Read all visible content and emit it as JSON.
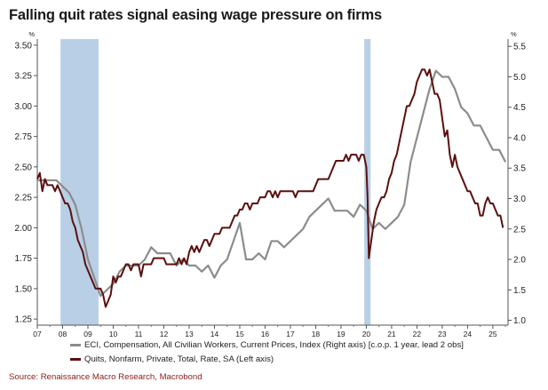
{
  "chart_data": {
    "type": "line",
    "title": "Falling quit rates signal easing wage pressure on firms",
    "left_axis": {
      "unit": "%",
      "ticks": [
        "1.25",
        "1.50",
        "1.75",
        "2.00",
        "2.25",
        "2.50",
        "2.75",
        "3.00",
        "3.25",
        "3.50"
      ],
      "ylim": [
        1.2,
        3.55
      ]
    },
    "right_axis": {
      "unit": "%",
      "ticks": [
        "1.0",
        "1.5",
        "2.0",
        "2.5",
        "3.0",
        "3.5",
        "4.0",
        "4.5",
        "5.0",
        "5.5"
      ],
      "ylim": [
        0.92,
        5.62
      ]
    },
    "x_axis": {
      "ticks": [
        "07",
        "08",
        "09",
        "10",
        "11",
        "12",
        "13",
        "14",
        "15",
        "16",
        "17",
        "18",
        "19",
        "20",
        "21",
        "22",
        "23",
        "24",
        "25"
      ],
      "xlim": [
        2007.0,
        2025.6
      ]
    },
    "grid": false,
    "legend_position": "bottom",
    "recession_shading": [
      [
        2007.92,
        2009.42
      ],
      [
        2019.92,
        2020.17
      ]
    ],
    "shade_color": "#b8cfe6",
    "series": [
      {
        "name": "ECI, Compensation, All Civilian Workers, Current Prices, Index (Right axis) [c.o.p. 1 year, lead 2 obs]",
        "axis": "right",
        "color": "#8c8c8c",
        "points": [
          [
            2007.0,
            3.3
          ],
          [
            2007.25,
            3.3
          ],
          [
            2007.5,
            3.3
          ],
          [
            2007.75,
            3.3
          ],
          [
            2008.0,
            3.2
          ],
          [
            2008.25,
            3.1
          ],
          [
            2008.5,
            2.9
          ],
          [
            2008.75,
            2.5
          ],
          [
            2009.0,
            2.0
          ],
          [
            2009.25,
            1.7
          ],
          [
            2009.5,
            1.4
          ],
          [
            2009.75,
            1.5
          ],
          [
            2010.0,
            1.6
          ],
          [
            2010.25,
            1.8
          ],
          [
            2010.5,
            1.9
          ],
          [
            2010.75,
            1.9
          ],
          [
            2011.0,
            1.9
          ],
          [
            2011.25,
            2.0
          ],
          [
            2011.5,
            2.2
          ],
          [
            2011.75,
            2.1
          ],
          [
            2012.0,
            2.1
          ],
          [
            2012.25,
            2.1
          ],
          [
            2012.5,
            1.9
          ],
          [
            2012.75,
            2.0
          ],
          [
            2013.0,
            1.9
          ],
          [
            2013.25,
            1.9
          ],
          [
            2013.5,
            1.8
          ],
          [
            2013.75,
            1.9
          ],
          [
            2014.0,
            1.7
          ],
          [
            2014.25,
            1.9
          ],
          [
            2014.5,
            2.0
          ],
          [
            2014.75,
            2.3
          ],
          [
            2015.0,
            2.6
          ],
          [
            2015.25,
            2.0
          ],
          [
            2015.5,
            2.0
          ],
          [
            2015.75,
            2.1
          ],
          [
            2016.0,
            2.0
          ],
          [
            2016.25,
            2.3
          ],
          [
            2016.5,
            2.3
          ],
          [
            2016.75,
            2.2
          ],
          [
            2017.0,
            2.3
          ],
          [
            2017.25,
            2.4
          ],
          [
            2017.5,
            2.5
          ],
          [
            2017.75,
            2.7
          ],
          [
            2018.0,
            2.8
          ],
          [
            2018.25,
            2.9
          ],
          [
            2018.5,
            3.0
          ],
          [
            2018.75,
            2.8
          ],
          [
            2019.0,
            2.8
          ],
          [
            2019.25,
            2.8
          ],
          [
            2019.5,
            2.7
          ],
          [
            2019.75,
            2.9
          ],
          [
            2020.0,
            2.8
          ],
          [
            2020.25,
            2.5
          ],
          [
            2020.5,
            2.6
          ],
          [
            2020.75,
            2.5
          ],
          [
            2021.0,
            2.6
          ],
          [
            2021.25,
            2.7
          ],
          [
            2021.5,
            2.9
          ],
          [
            2021.75,
            3.6
          ],
          [
            2022.0,
            4.0
          ],
          [
            2022.25,
            4.4
          ],
          [
            2022.5,
            4.8
          ],
          [
            2022.75,
            5.1
          ],
          [
            2023.0,
            5.0
          ],
          [
            2023.25,
            5.0
          ],
          [
            2023.5,
            4.8
          ],
          [
            2023.75,
            4.5
          ],
          [
            2024.0,
            4.4
          ],
          [
            2024.25,
            4.2
          ],
          [
            2024.5,
            4.2
          ],
          [
            2024.75,
            4.0
          ],
          [
            2025.0,
            3.8
          ],
          [
            2025.25,
            3.8
          ],
          [
            2025.5,
            3.6
          ],
          [
            2025.75,
            3.6
          ]
        ]
      },
      {
        "name": "Quits, Nonfarm, Private, Total, Rate, SA (Left axis)",
        "axis": "left",
        "color": "#5c0f0f",
        "points": [
          [
            2007.0,
            2.4
          ],
          [
            2007.1,
            2.45
          ],
          [
            2007.2,
            2.3
          ],
          [
            2007.3,
            2.4
          ],
          [
            2007.4,
            2.35
          ],
          [
            2007.5,
            2.35
          ],
          [
            2007.6,
            2.35
          ],
          [
            2007.7,
            2.3
          ],
          [
            2007.8,
            2.35
          ],
          [
            2007.9,
            2.3
          ],
          [
            2008.0,
            2.25
          ],
          [
            2008.1,
            2.2
          ],
          [
            2008.2,
            2.2
          ],
          [
            2008.3,
            2.15
          ],
          [
            2008.4,
            2.05
          ],
          [
            2008.5,
            2.0
          ],
          [
            2008.6,
            1.9
          ],
          [
            2008.7,
            1.85
          ],
          [
            2008.8,
            1.8
          ],
          [
            2008.9,
            1.7
          ],
          [
            2009.0,
            1.65
          ],
          [
            2009.1,
            1.6
          ],
          [
            2009.2,
            1.55
          ],
          [
            2009.3,
            1.5
          ],
          [
            2009.4,
            1.5
          ],
          [
            2009.5,
            1.5
          ],
          [
            2009.6,
            1.45
          ],
          [
            2009.7,
            1.35
          ],
          [
            2009.8,
            1.4
          ],
          [
            2009.9,
            1.45
          ],
          [
            2010.0,
            1.6
          ],
          [
            2010.1,
            1.55
          ],
          [
            2010.2,
            1.6
          ],
          [
            2010.3,
            1.6
          ],
          [
            2010.4,
            1.65
          ],
          [
            2010.5,
            1.7
          ],
          [
            2010.6,
            1.7
          ],
          [
            2010.7,
            1.65
          ],
          [
            2010.8,
            1.7
          ],
          [
            2010.9,
            1.7
          ],
          [
            2011.0,
            1.7
          ],
          [
            2011.1,
            1.6
          ],
          [
            2011.2,
            1.7
          ],
          [
            2011.3,
            1.7
          ],
          [
            2011.4,
            1.7
          ],
          [
            2011.5,
            1.7
          ],
          [
            2011.6,
            1.75
          ],
          [
            2011.7,
            1.75
          ],
          [
            2011.8,
            1.75
          ],
          [
            2011.9,
            1.75
          ],
          [
            2012.0,
            1.75
          ],
          [
            2012.1,
            1.7
          ],
          [
            2012.2,
            1.7
          ],
          [
            2012.3,
            1.7
          ],
          [
            2012.4,
            1.7
          ],
          [
            2012.5,
            1.7
          ],
          [
            2012.6,
            1.75
          ],
          [
            2012.7,
            1.7
          ],
          [
            2012.8,
            1.75
          ],
          [
            2012.9,
            1.7
          ],
          [
            2013.0,
            1.8
          ],
          [
            2013.1,
            1.85
          ],
          [
            2013.2,
            1.8
          ],
          [
            2013.3,
            1.85
          ],
          [
            2013.4,
            1.8
          ],
          [
            2013.5,
            1.85
          ],
          [
            2013.6,
            1.9
          ],
          [
            2013.7,
            1.9
          ],
          [
            2013.8,
            1.85
          ],
          [
            2013.9,
            1.9
          ],
          [
            2014.0,
            1.95
          ],
          [
            2014.1,
            1.95
          ],
          [
            2014.2,
            1.95
          ],
          [
            2014.3,
            2.0
          ],
          [
            2014.4,
            2.0
          ],
          [
            2014.5,
            2.0
          ],
          [
            2014.6,
            2.0
          ],
          [
            2014.7,
            2.05
          ],
          [
            2014.8,
            2.1
          ],
          [
            2014.9,
            2.1
          ],
          [
            2015.0,
            2.15
          ],
          [
            2015.1,
            2.15
          ],
          [
            2015.2,
            2.2
          ],
          [
            2015.3,
            2.2
          ],
          [
            2015.4,
            2.15
          ],
          [
            2015.5,
            2.2
          ],
          [
            2015.6,
            2.2
          ],
          [
            2015.7,
            2.2
          ],
          [
            2015.8,
            2.25
          ],
          [
            2015.9,
            2.25
          ],
          [
            2016.0,
            2.25
          ],
          [
            2016.1,
            2.3
          ],
          [
            2016.2,
            2.3
          ],
          [
            2016.3,
            2.25
          ],
          [
            2016.4,
            2.3
          ],
          [
            2016.5,
            2.25
          ],
          [
            2016.6,
            2.3
          ],
          [
            2016.7,
            2.3
          ],
          [
            2016.8,
            2.3
          ],
          [
            2016.9,
            2.3
          ],
          [
            2017.0,
            2.3
          ],
          [
            2017.1,
            2.3
          ],
          [
            2017.2,
            2.25
          ],
          [
            2017.3,
            2.3
          ],
          [
            2017.4,
            2.3
          ],
          [
            2017.5,
            2.3
          ],
          [
            2017.6,
            2.3
          ],
          [
            2017.7,
            2.3
          ],
          [
            2017.8,
            2.3
          ],
          [
            2017.9,
            2.3
          ],
          [
            2018.0,
            2.35
          ],
          [
            2018.1,
            2.4
          ],
          [
            2018.2,
            2.4
          ],
          [
            2018.3,
            2.4
          ],
          [
            2018.4,
            2.4
          ],
          [
            2018.5,
            2.4
          ],
          [
            2018.6,
            2.45
          ],
          [
            2018.7,
            2.5
          ],
          [
            2018.8,
            2.55
          ],
          [
            2018.9,
            2.55
          ],
          [
            2019.0,
            2.55
          ],
          [
            2019.1,
            2.55
          ],
          [
            2019.2,
            2.6
          ],
          [
            2019.3,
            2.55
          ],
          [
            2019.4,
            2.6
          ],
          [
            2019.5,
            2.6
          ],
          [
            2019.6,
            2.6
          ],
          [
            2019.7,
            2.55
          ],
          [
            2019.8,
            2.6
          ],
          [
            2019.9,
            2.6
          ],
          [
            2020.0,
            2.5
          ],
          [
            2020.05,
            2.25
          ],
          [
            2020.1,
            1.75
          ],
          [
            2020.2,
            1.9
          ],
          [
            2020.3,
            2.05
          ],
          [
            2020.4,
            2.15
          ],
          [
            2020.5,
            2.2
          ],
          [
            2020.6,
            2.25
          ],
          [
            2020.7,
            2.25
          ],
          [
            2020.8,
            2.3
          ],
          [
            2020.9,
            2.4
          ],
          [
            2021.0,
            2.45
          ],
          [
            2021.1,
            2.55
          ],
          [
            2021.2,
            2.6
          ],
          [
            2021.3,
            2.7
          ],
          [
            2021.4,
            2.8
          ],
          [
            2021.5,
            2.9
          ],
          [
            2021.6,
            3.0
          ],
          [
            2021.7,
            3.0
          ],
          [
            2021.8,
            3.05
          ],
          [
            2021.9,
            3.1
          ],
          [
            2022.0,
            3.2
          ],
          [
            2022.1,
            3.25
          ],
          [
            2022.2,
            3.3
          ],
          [
            2022.3,
            3.3
          ],
          [
            2022.4,
            3.25
          ],
          [
            2022.5,
            3.3
          ],
          [
            2022.6,
            3.2
          ],
          [
            2022.7,
            3.1
          ],
          [
            2022.8,
            3.1
          ],
          [
            2022.9,
            3.05
          ],
          [
            2023.0,
            2.9
          ],
          [
            2023.1,
            2.75
          ],
          [
            2023.2,
            2.8
          ],
          [
            2023.3,
            2.6
          ],
          [
            2023.4,
            2.5
          ],
          [
            2023.5,
            2.6
          ],
          [
            2023.6,
            2.5
          ],
          [
            2023.7,
            2.45
          ],
          [
            2023.8,
            2.4
          ],
          [
            2023.9,
            2.35
          ],
          [
            2024.0,
            2.3
          ],
          [
            2024.1,
            2.3
          ],
          [
            2024.2,
            2.25
          ],
          [
            2024.3,
            2.2
          ],
          [
            2024.4,
            2.2
          ],
          [
            2024.5,
            2.1
          ],
          [
            2024.6,
            2.1
          ],
          [
            2024.7,
            2.2
          ],
          [
            2024.8,
            2.25
          ],
          [
            2024.9,
            2.2
          ],
          [
            2025.0,
            2.2
          ],
          [
            2025.1,
            2.15
          ],
          [
            2025.2,
            2.1
          ],
          [
            2025.3,
            2.1
          ],
          [
            2025.4,
            2.0
          ]
        ]
      }
    ]
  },
  "source": "Source: Renaissance Macro Research, Macrobond"
}
